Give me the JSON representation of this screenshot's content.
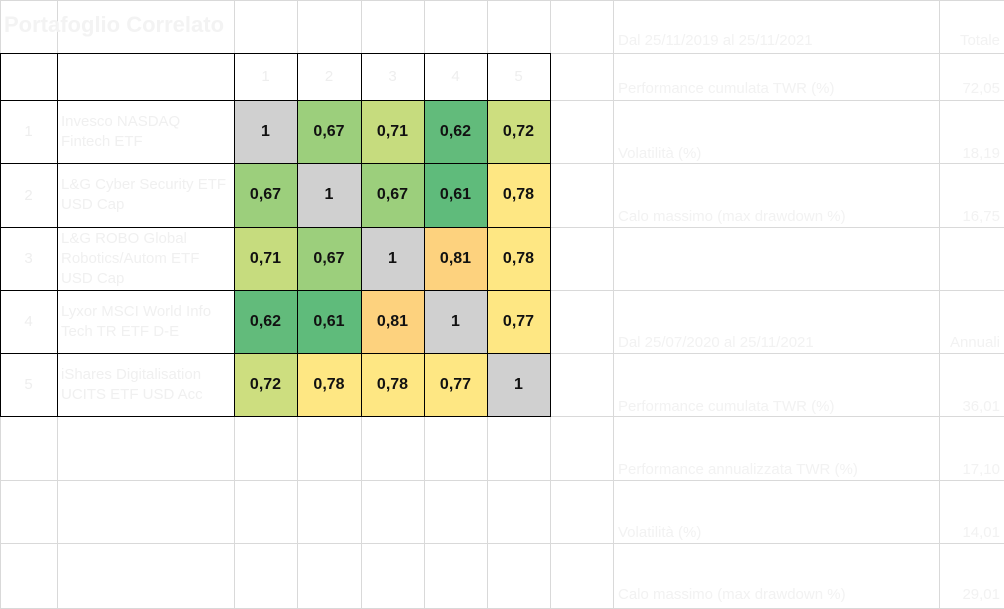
{
  "title": "Portafoglio Correlato",
  "matrix": {
    "col_headers": [
      "1",
      "2",
      "3",
      "4",
      "5"
    ],
    "rows": [
      {
        "idx": "1",
        "name": "Invesco NASDAQ Fintech ETF",
        "values": [
          "1",
          "0,67",
          "0,71",
          "0,62",
          "0,72"
        ],
        "colors": [
          "#d0d0d0",
          "#9ccf7c",
          "#c6dc7e",
          "#62bb7b",
          "#cdde7f"
        ]
      },
      {
        "idx": "2",
        "name": "L&G Cyber Security ETF USD Cap",
        "values": [
          "0,67",
          "1",
          "0,67",
          "0,61",
          "0,78"
        ],
        "colors": [
          "#9ccf7c",
          "#d0d0d0",
          "#9ccf7c",
          "#5fbb7b",
          "#fee783"
        ]
      },
      {
        "idx": "3",
        "name": "L&G ROBO Global Robotics/Autom ETF USD Cap",
        "values": [
          "0,71",
          "0,67",
          "1",
          "0,81",
          "0,78"
        ],
        "colors": [
          "#c6dc7e",
          "#9ccf7c",
          "#d0d0d0",
          "#fdd27e",
          "#fee783"
        ]
      },
      {
        "idx": "4",
        "name": "Lyxor MSCI World Info Tech TR ETF D-E",
        "values": [
          "0,62",
          "0,61",
          "0,81",
          "1",
          "0,77"
        ],
        "colors": [
          "#62bb7b",
          "#5fbb7b",
          "#fdd27e",
          "#d0d0d0",
          "#fee783"
        ]
      },
      {
        "idx": "5",
        "name": "iShares Digitalisation UCITS ETF USD Acc",
        "values": [
          "0,72",
          "0,78",
          "0,78",
          "0,77",
          "1"
        ],
        "colors": [
          "#cdde7f",
          "#fee783",
          "#fee783",
          "#fee783",
          "#d0d0d0"
        ]
      }
    ]
  },
  "stats": [
    {
      "label": "Dal 25/11/2019 al 25/11/2021",
      "value": "Totale"
    },
    {
      "label": "Performance cumulata TWR (%)",
      "value": "72,05"
    },
    {
      "label": "Volatilità (%)",
      "value": "18,19"
    },
    {
      "label": "Calo massimo (max drawdown %)",
      "value": "16,75"
    },
    {
      "label": "Dal 25/07/2020 al 25/11/2021",
      "value": "Annuali"
    },
    {
      "label": "Performance cumulata TWR (%)",
      "value": "36,01"
    },
    {
      "label": "Performance annualizzata TWR (%)",
      "value": "17,10"
    },
    {
      "label": "Volatilità (%)",
      "value": "14,01"
    },
    {
      "label": "Calo massimo (max drawdown %)",
      "value": "29,01"
    }
  ]
}
